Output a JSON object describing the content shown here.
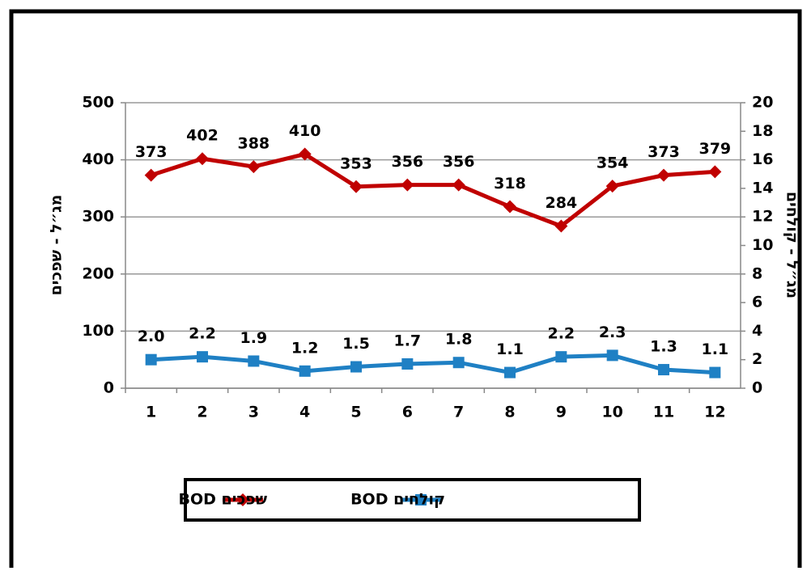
{
  "chart_data": {
    "type": "line",
    "ylabel": "מג״ל - שפכים",
    "y2label": "מג״ל - קולחים",
    "categories": [
      "1",
      "2",
      "3",
      "4",
      "5",
      "6",
      "7",
      "8",
      "9",
      "10",
      "11",
      "12"
    ],
    "series": [
      {
        "name": "BOD שפכים",
        "color": "#c00000",
        "marker": "diamond",
        "values": [
          373,
          402,
          388,
          410,
          353,
          356,
          356,
          318,
          284,
          354,
          373,
          379
        ]
      },
      {
        "name": "BOD קולחים",
        "color": "#1f80c4",
        "marker": "square",
        "axis": "y2",
        "values": [
          2.0,
          2.2,
          1.9,
          1.2,
          1.5,
          1.7,
          1.8,
          1.1,
          2.2,
          2.3,
          1.3,
          1.1
        ],
        "value_labels": [
          "2.0",
          "2.2",
          "1.9",
          "1.2",
          "1.5",
          "1.7",
          "1.8",
          "1.1",
          "2.2",
          "2.3",
          "1.3",
          "1.1"
        ]
      }
    ],
    "ylim": [
      0,
      500
    ],
    "yticks": [
      0,
      100,
      200,
      300,
      400,
      500
    ],
    "y2lim": [
      0,
      20
    ],
    "y2ticks": [
      0,
      2,
      4,
      6,
      8,
      10,
      12,
      14,
      16,
      18,
      20
    ],
    "grid": true
  }
}
